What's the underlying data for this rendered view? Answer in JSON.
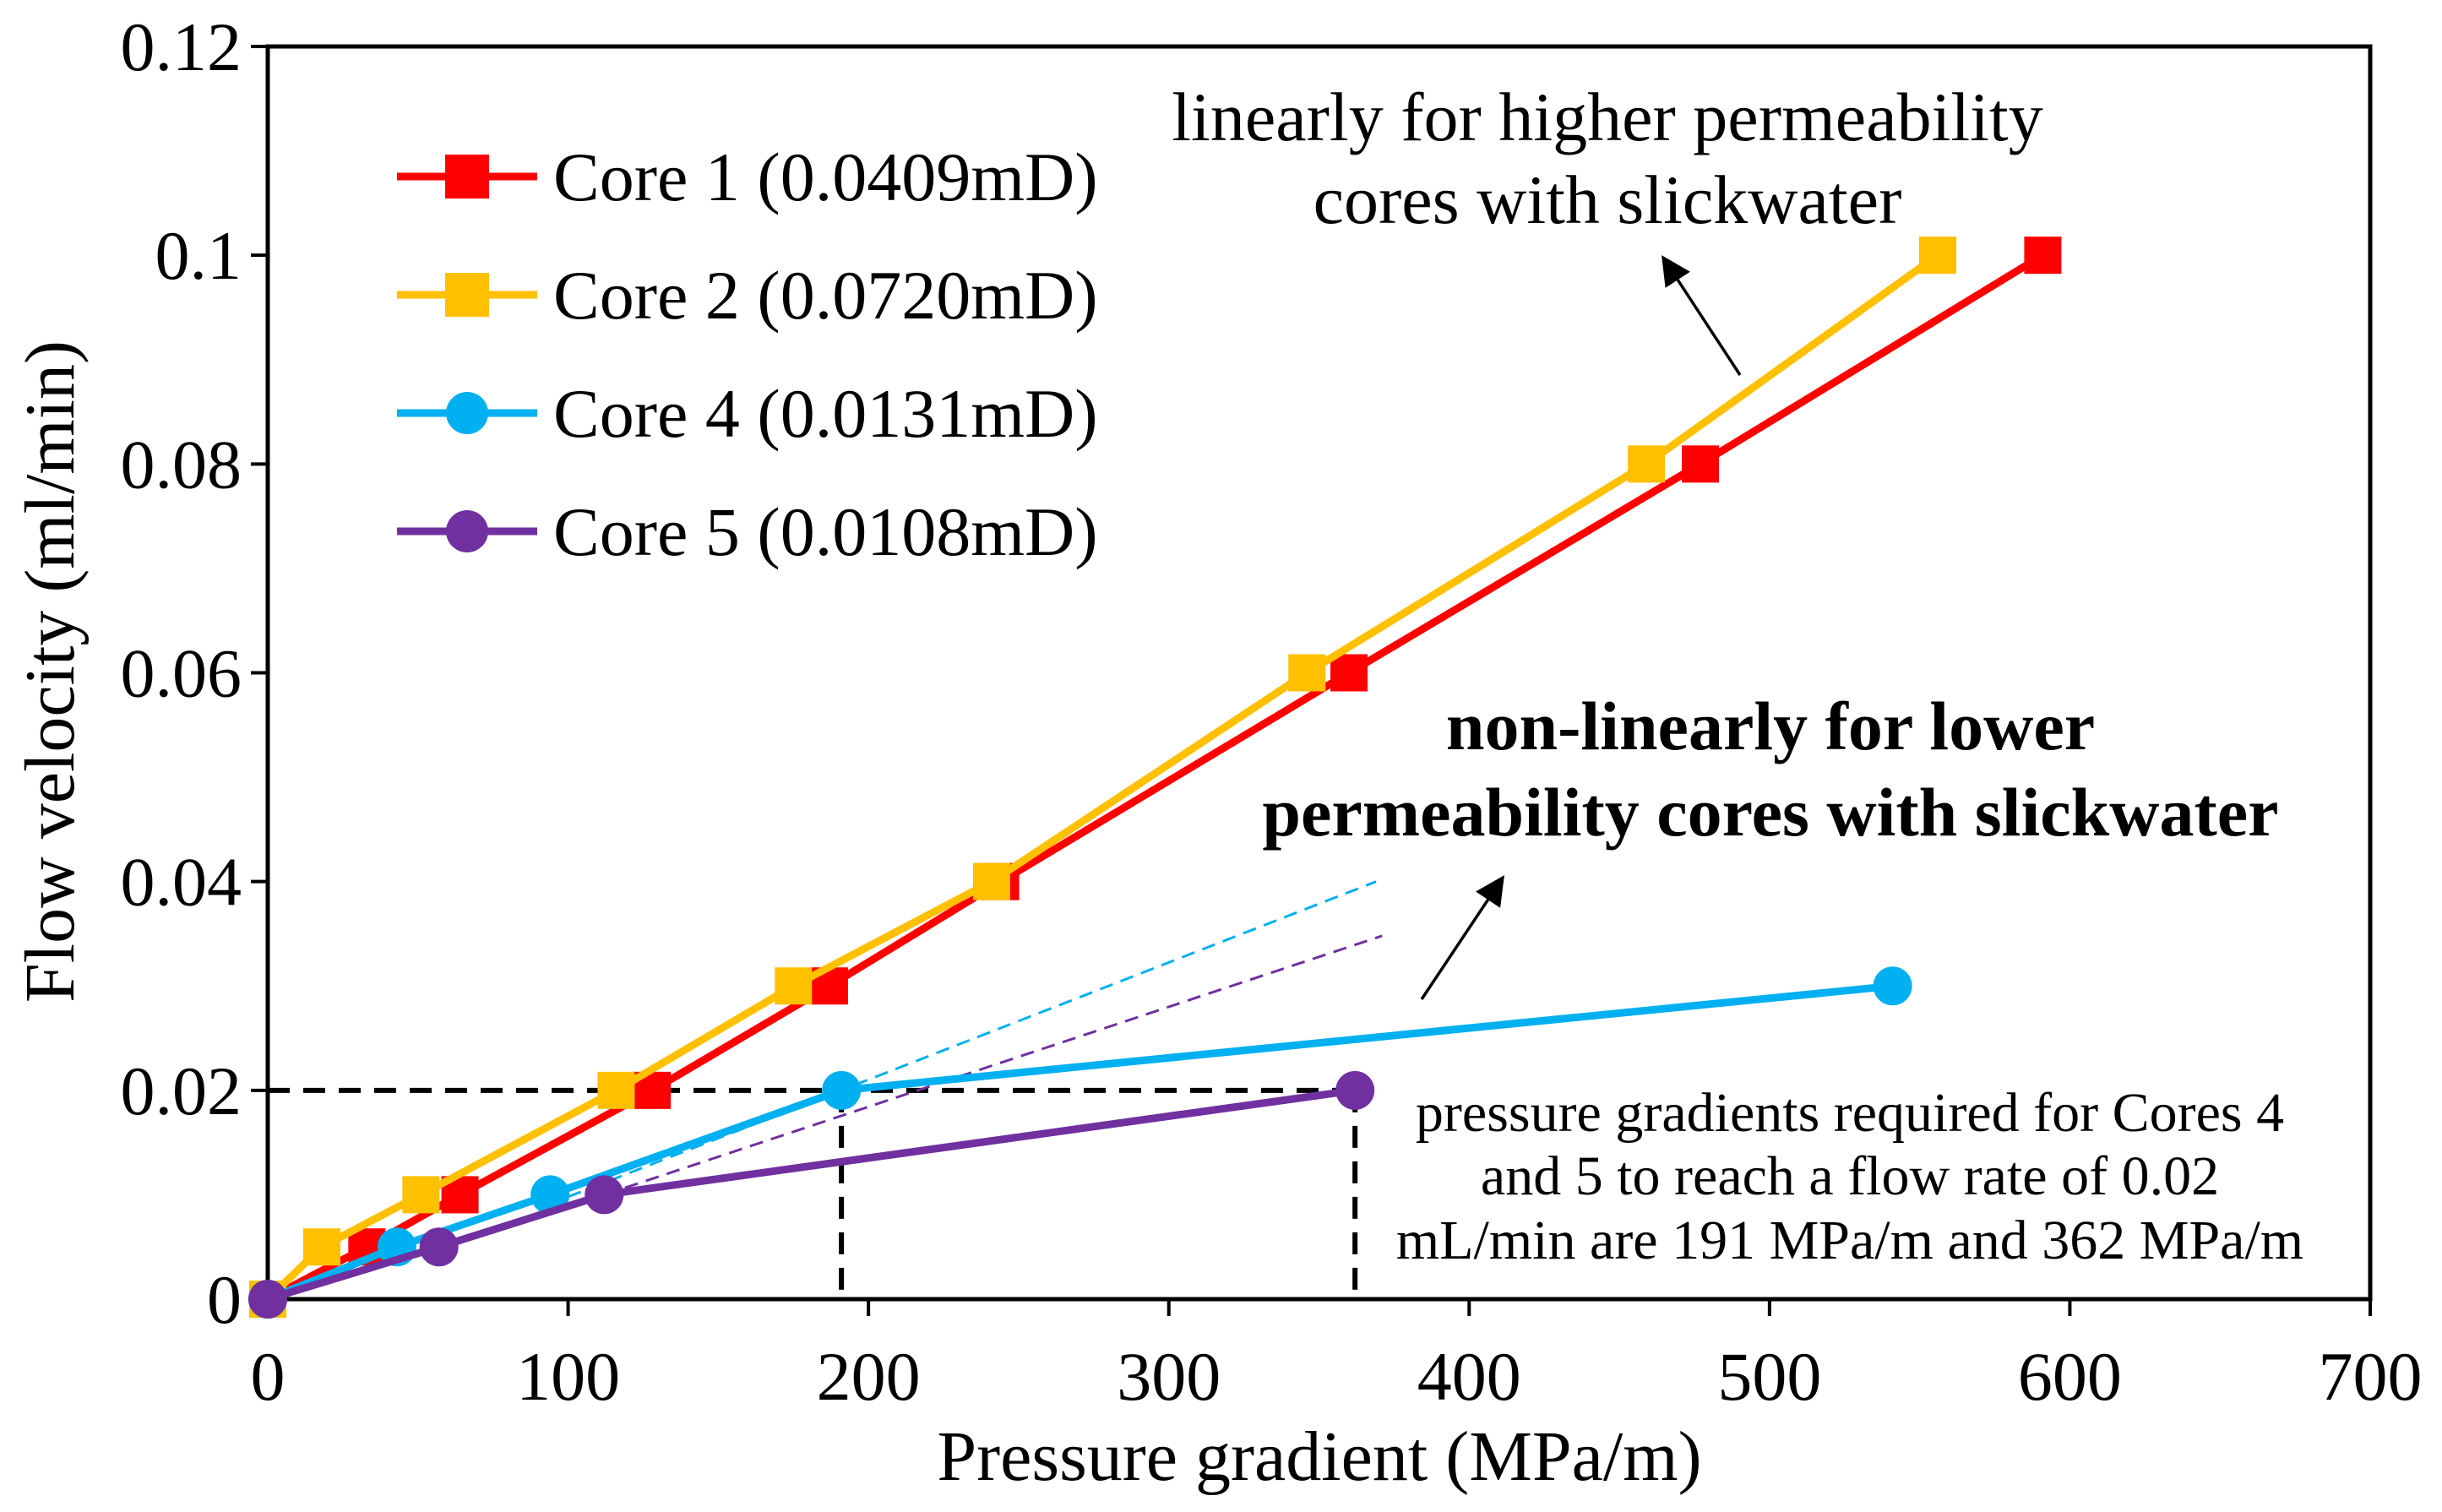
{
  "chart_data": {
    "type": "line",
    "xlabel": "Pressure gradient (MPa/m)",
    "ylabel": "Flow velocity (ml/min)",
    "xlim": [
      0,
      700
    ],
    "ylim": [
      0,
      0.12
    ],
    "xticks": [
      0,
      100,
      200,
      300,
      400,
      500,
      600,
      700
    ],
    "xtick_labels": [
      "0",
      "100",
      "200",
      "300",
      "400",
      "500",
      "600",
      "700"
    ],
    "yticks": [
      0,
      0.02,
      0.04,
      0.06,
      0.08,
      0.1,
      0.12
    ],
    "ytick_labels": [
      "0",
      "0.02",
      "0.04",
      "0.06",
      "0.08",
      "0.1",
      "0.12"
    ],
    "grid": false,
    "legend_position": "top-left",
    "series": [
      {
        "name": "Core 1 (0.0409mD)",
        "color": "#ff0000",
        "marker": "square",
        "x": [
          0,
          33,
          64,
          128,
          187,
          244,
          360,
          477,
          591
        ],
        "y": [
          0,
          0.005,
          0.01,
          0.02,
          0.03,
          0.04,
          0.06,
          0.08,
          0.1
        ]
      },
      {
        "name": "Core 2 (0.0720mD)",
        "color": "#ffc000",
        "marker": "square",
        "x": [
          0,
          18,
          51,
          116,
          175,
          241,
          346,
          459,
          556
        ],
        "y": [
          0,
          0.005,
          0.01,
          0.02,
          0.03,
          0.04,
          0.06,
          0.08,
          0.1
        ]
      },
      {
        "name": "Core 4 (0.0131mD)",
        "color": "#00b0f0",
        "marker": "circle",
        "x": [
          0,
          43,
          94,
          191,
          541
        ],
        "y": [
          0,
          0.005,
          0.01,
          0.02,
          0.03
        ]
      },
      {
        "name": "Core 5 (0.0108mD)",
        "color": "#7030a0",
        "marker": "circle",
        "x": [
          0,
          57,
          112,
          362
        ],
        "y": [
          0,
          0.005,
          0.01,
          0.02
        ]
      }
    ],
    "trend_lines": [
      {
        "color": "#00b0f0",
        "x": [
          100,
          369
        ],
        "y": [
          0.0098,
          0.04
        ]
      },
      {
        "color": "#7030a0",
        "x": [
          112,
          371
        ],
        "y": [
          0.01,
          0.0348
        ]
      }
    ],
    "reference_lines": {
      "color": "#000000",
      "y": 0.02,
      "x": [
        191,
        362
      ]
    },
    "annotations": {
      "linear": [
        "linearly for higher permeability",
        "cores with slickwater"
      ],
      "nonlinear": [
        "non-linearly for lower",
        "permeability cores with slickwater"
      ],
      "pressure_note": [
        "pressure gradients required for Cores 4",
        "and 5 to reach a flow rate of 0.02",
        "mL/min are 191 MPa/m and 362 MPa/m"
      ]
    }
  }
}
